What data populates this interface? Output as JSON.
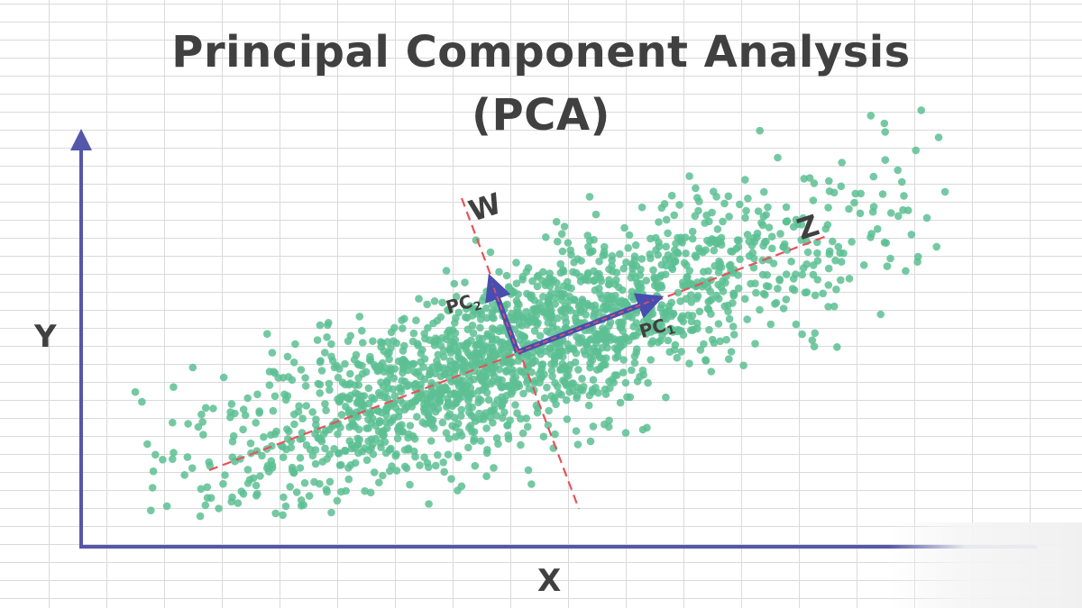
{
  "title": {
    "line1": "Principal Component Analysis",
    "line2": "(PCA)"
  },
  "axes": {
    "x_label": "X",
    "y_label": "Y"
  },
  "principal_axes": {
    "major_axis_label": "Z",
    "minor_axis_label": "W",
    "pc1_label": "PC",
    "pc1_subscript": "1",
    "pc2_label": "PC",
    "pc2_subscript": "2"
  },
  "colors": {
    "points": "#5cbf93",
    "axis_lines": "#5557a8",
    "component_dash": "#e5545a",
    "vector_arrow": "#4a4db0",
    "text": "#404040"
  }
}
